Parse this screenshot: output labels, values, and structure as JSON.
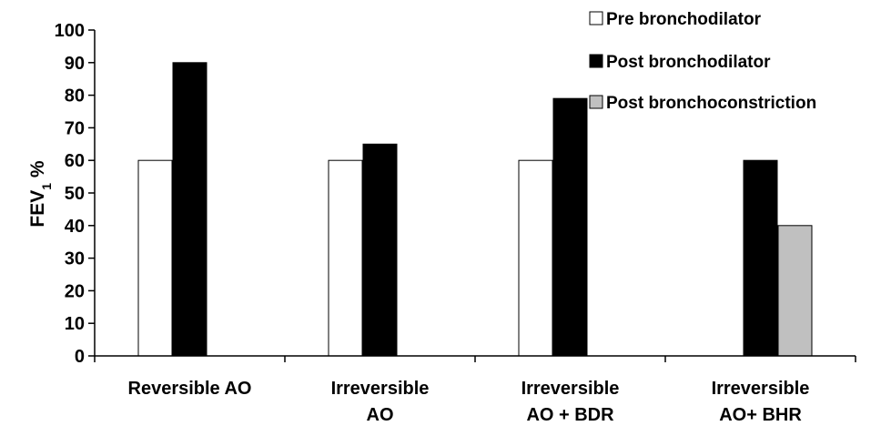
{
  "chart_data": {
    "type": "bar",
    "categories": [
      [
        "Reversible AO"
      ],
      [
        "Irreversible",
        "AO"
      ],
      [
        "Irreversible",
        "AO + BDR"
      ],
      [
        "Irreversible",
        "AO+ BHR"
      ]
    ],
    "series": [
      {
        "name": "Pre bronchodilator",
        "color": "#ffffff",
        "values": [
          60,
          60,
          60,
          null
        ]
      },
      {
        "name": "Post bronchodilator",
        "color": "#000000",
        "values": [
          90,
          65,
          79,
          60
        ]
      },
      {
        "name": "Post bronchoconstriction",
        "color": "#c0c0c0",
        "values": [
          null,
          null,
          null,
          40
        ]
      }
    ],
    "ylabel_main": "FEV",
    "ylabel_sub": "1",
    "ylabel_unit": " %",
    "ylim": [
      0,
      100
    ],
    "yticks": [
      0,
      10,
      20,
      30,
      40,
      50,
      60,
      70,
      80,
      90,
      100
    ],
    "grid": false,
    "legend_position": "top-right"
  }
}
